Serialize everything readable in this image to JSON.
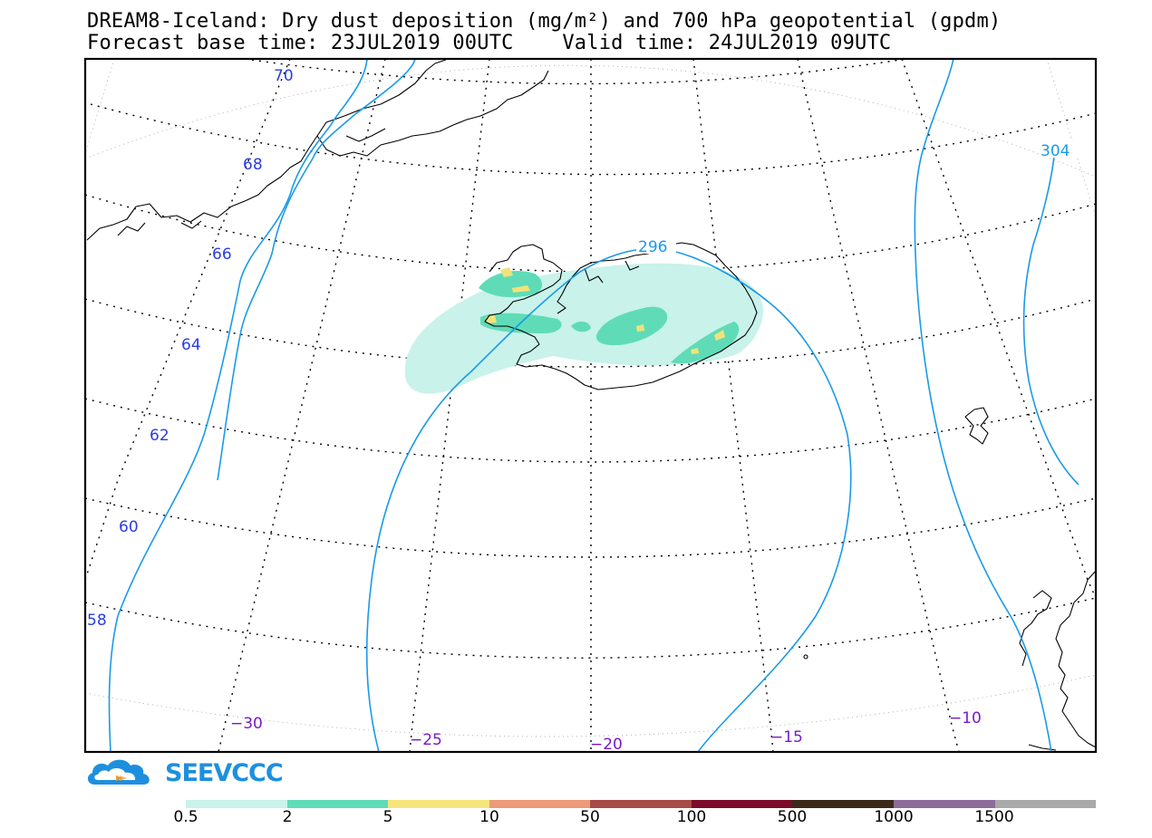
{
  "title": {
    "line1": "DREAM8-Iceland: Dry dust deposition (mg/m²) and 700 hPa geopotential (gpdm)",
    "line2": "Forecast base time: 23JUL2019 00UTC    Valid time: 24JUL2019 09UTC"
  },
  "map": {
    "latitude_labels": [
      "70",
      "68",
      "66",
      "64",
      "62",
      "60",
      "58"
    ],
    "longitude_labels": [
      "−30",
      "−25",
      "−20",
      "−15",
      "−10"
    ],
    "contour_labels": [
      "296",
      "304"
    ],
    "contour_color": "#1a9ae8",
    "dust_colors": {
      "light": "#c8f2ea",
      "medium": "#5fdcb7",
      "high": "#f2e27a"
    }
  },
  "logo": {
    "text": "SEEVCCC",
    "icon": "cloud-logo-icon",
    "color": "#1e8fde"
  },
  "legend": {
    "colors": [
      "#c8f2ea",
      "#5fdcb7",
      "#f6e57b",
      "#ec9a78",
      "#a84a45",
      "#7a0c2a",
      "#3b2a1a",
      "#8e6c9a",
      "#a9a9a9"
    ],
    "labels": [
      "0.5",
      "2",
      "5",
      "10",
      "50",
      "100",
      "500",
      "1000",
      "1500"
    ]
  }
}
